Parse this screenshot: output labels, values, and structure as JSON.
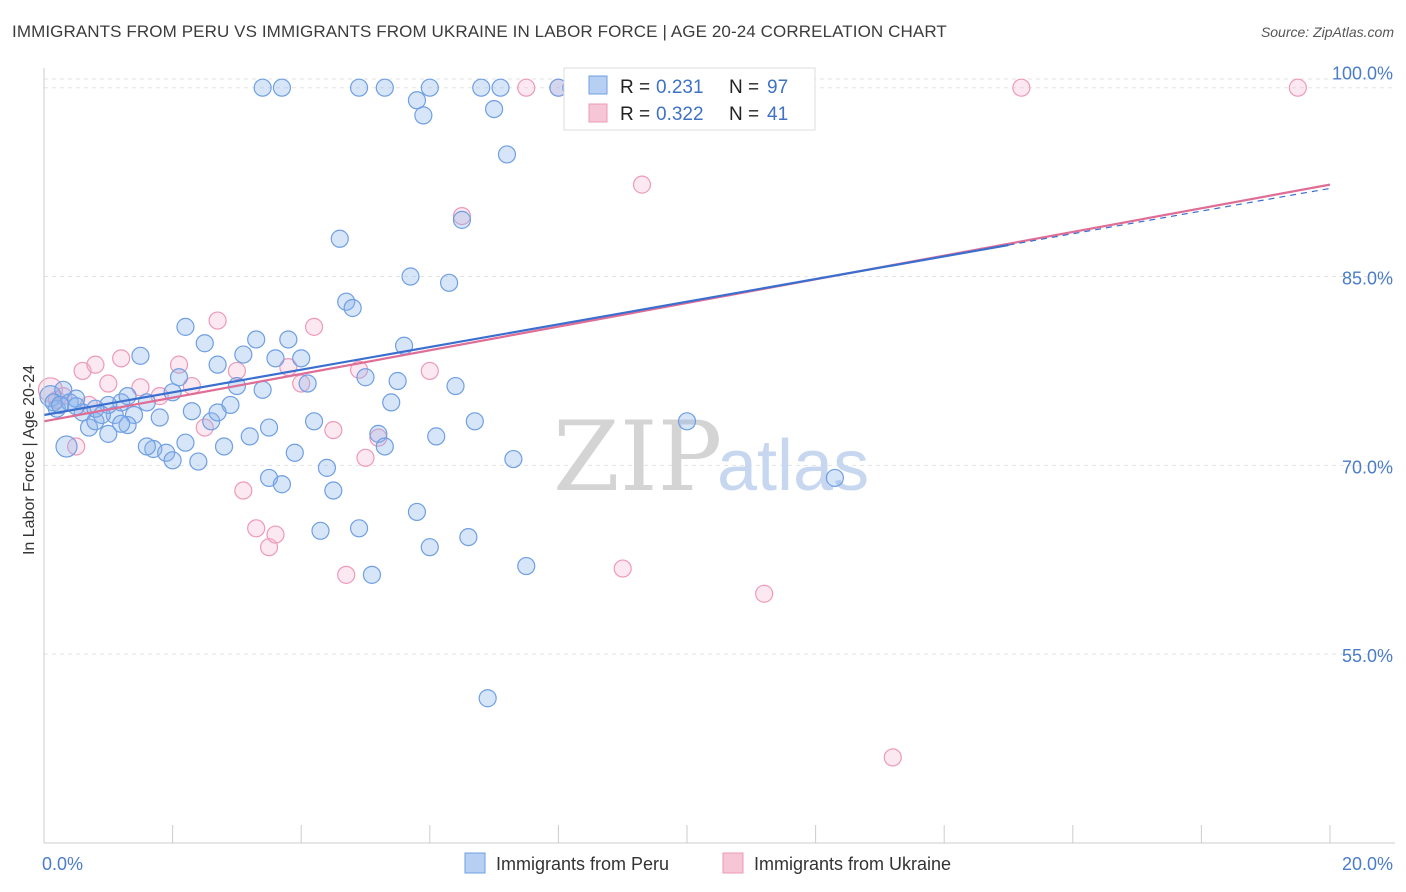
{
  "title": "IMMIGRANTS FROM PERU VS IMMIGRANTS FROM UKRAINE IN LABOR FORCE | AGE 20-24 CORRELATION CHART",
  "source": "Source: ZipAtlas.com",
  "watermark": {
    "zip": "ZIP",
    "atlas": "atlas"
  },
  "colors": {
    "peru": "#6f9fe3",
    "peru_line": "#3a6fcf",
    "ukraine": "#ee9ab8",
    "ukraine_line": "#df6d96",
    "tick_label": "#4a7cc9"
  },
  "legend_top": {
    "peru": {
      "r_label": "R =",
      "r": "0.231",
      "n_label": "N =",
      "n": "97"
    },
    "ukraine": {
      "r_label": "R =",
      "r": "0.322",
      "n_label": "N =",
      "n": "41"
    }
  },
  "chart_data": {
    "type": "scatter",
    "xlabel": "",
    "ylabel": "In Labor Force | Age 20-24",
    "xlim": [
      0,
      20
    ],
    "ylim": [
      40,
      102.2
    ],
    "x_tick_labels": [
      {
        "v": 0,
        "t": "0.0%"
      },
      {
        "v": 20,
        "t": "20.0%"
      }
    ],
    "y_tick_labels": [
      {
        "v": 55,
        "t": "55.0%"
      },
      {
        "v": 70,
        "t": "70.0%"
      },
      {
        "v": 85,
        "t": "85.0%"
      },
      {
        "v": 100,
        "t": "100.0%"
      }
    ],
    "grid": true,
    "legend_placement": "bottom-center",
    "series": [
      {
        "name": "Immigrants from Peru",
        "r": 0.231,
        "n": 97,
        "trend": {
          "x0": 0,
          "y0": 74.0,
          "x1": 15,
          "y1": 87.5,
          "dash_to_x": 20,
          "dash_to_y": 92.0
        },
        "points": [
          [
            0.1,
            75.5
          ],
          [
            0.2,
            74.5
          ],
          [
            0.3,
            76.0
          ],
          [
            0.4,
            75.0
          ],
          [
            0.5,
            75.3
          ],
          [
            0.6,
            74.2
          ],
          [
            0.7,
            73.0
          ],
          [
            0.8,
            73.5
          ],
          [
            1.0,
            72.5
          ],
          [
            1.1,
            74.0
          ],
          [
            0.35,
            71.5
          ],
          [
            1.2,
            75.0
          ],
          [
            1.3,
            75.5
          ],
          [
            1.4,
            74.0
          ],
          [
            1.5,
            78.7
          ],
          [
            1.6,
            75.0
          ],
          [
            1.7,
            71.3
          ],
          [
            1.8,
            73.8
          ],
          [
            1.9,
            71.0
          ],
          [
            2.0,
            75.8
          ],
          [
            2.1,
            77.0
          ],
          [
            2.2,
            81.0
          ],
          [
            2.3,
            74.3
          ],
          [
            2.5,
            79.7
          ],
          [
            2.6,
            73.5
          ],
          [
            2.7,
            78.0
          ],
          [
            2.8,
            71.5
          ],
          [
            2.9,
            74.8
          ],
          [
            3.0,
            76.3
          ],
          [
            3.1,
            78.8
          ],
          [
            3.2,
            72.3
          ],
          [
            3.3,
            80.0
          ],
          [
            3.4,
            76.0
          ],
          [
            3.5,
            69.0
          ],
          [
            3.6,
            78.5
          ],
          [
            3.7,
            68.5
          ],
          [
            3.8,
            80.0
          ],
          [
            3.9,
            71.0
          ],
          [
            4.0,
            78.5
          ],
          [
            4.1,
            76.5
          ],
          [
            4.2,
            73.5
          ],
          [
            4.3,
            64.8
          ],
          [
            4.4,
            69.8
          ],
          [
            4.5,
            68.0
          ],
          [
            4.6,
            88.0
          ],
          [
            4.7,
            83.0
          ],
          [
            4.8,
            82.5
          ],
          [
            4.9,
            65.0
          ],
          [
            5.0,
            77.0
          ],
          [
            5.1,
            61.3
          ],
          [
            5.2,
            72.5
          ],
          [
            5.3,
            71.5
          ],
          [
            5.4,
            75.0
          ],
          [
            5.5,
            76.7
          ],
          [
            5.6,
            79.5
          ],
          [
            5.7,
            85.0
          ],
          [
            5.8,
            66.3
          ],
          [
            6.0,
            63.5
          ],
          [
            6.1,
            72.3
          ],
          [
            6.3,
            84.5
          ],
          [
            6.4,
            76.3
          ],
          [
            6.5,
            89.5
          ],
          [
            6.6,
            64.3
          ],
          [
            6.7,
            73.5
          ],
          [
            7.0,
            98.3
          ],
          [
            7.2,
            94.7
          ],
          [
            7.3,
            70.5
          ],
          [
            7.5,
            62.0
          ],
          [
            8.0,
            100.0
          ],
          [
            8.4,
            99.5
          ],
          [
            3.4,
            100.0
          ],
          [
            3.7,
            100.0
          ],
          [
            4.9,
            100.0
          ],
          [
            5.3,
            100.0
          ],
          [
            5.8,
            99.0
          ],
          [
            5.9,
            97.8
          ],
          [
            6.0,
            100.0
          ],
          [
            6.8,
            100.0
          ],
          [
            7.1,
            100.0
          ],
          [
            8.2,
            100.0
          ],
          [
            6.9,
            51.5
          ],
          [
            10.0,
            73.5
          ],
          [
            12.3,
            69.0
          ],
          [
            2.0,
            70.4
          ],
          [
            2.4,
            70.3
          ],
          [
            1.0,
            74.8
          ],
          [
            1.3,
            73.2
          ],
          [
            0.9,
            74.0
          ],
          [
            2.7,
            74.2
          ],
          [
            3.5,
            73.0
          ],
          [
            1.6,
            71.5
          ],
          [
            0.5,
            74.7
          ],
          [
            0.15,
            75.0
          ],
          [
            0.25,
            74.8
          ],
          [
            1.2,
            73.3
          ],
          [
            2.2,
            71.8
          ],
          [
            0.8,
            74.5
          ]
        ]
      },
      {
        "name": "Immigrants from Ukraine",
        "r": 0.322,
        "n": 41,
        "trend": {
          "x0": 0,
          "y0": 73.5,
          "x1": 20,
          "y1": 92.3
        },
        "points": [
          [
            0.1,
            76.0
          ],
          [
            0.2,
            75.2
          ],
          [
            0.3,
            75.5
          ],
          [
            0.5,
            71.5
          ],
          [
            0.6,
            77.5
          ],
          [
            0.7,
            74.8
          ],
          [
            0.8,
            78.0
          ],
          [
            1.0,
            76.5
          ],
          [
            1.2,
            78.5
          ],
          [
            1.5,
            76.2
          ],
          [
            1.8,
            75.5
          ],
          [
            2.1,
            78.0
          ],
          [
            2.3,
            76.3
          ],
          [
            2.5,
            73.0
          ],
          [
            2.7,
            81.5
          ],
          [
            3.0,
            77.5
          ],
          [
            3.1,
            68.0
          ],
          [
            3.3,
            65.0
          ],
          [
            3.5,
            63.5
          ],
          [
            3.6,
            64.5
          ],
          [
            3.8,
            77.8
          ],
          [
            4.0,
            76.5
          ],
          [
            4.2,
            81.0
          ],
          [
            4.5,
            72.8
          ],
          [
            4.7,
            61.3
          ],
          [
            4.9,
            77.6
          ],
          [
            5.0,
            70.6
          ],
          [
            5.2,
            72.2
          ],
          [
            6.0,
            77.5
          ],
          [
            6.5,
            89.8
          ],
          [
            9.0,
            61.8
          ],
          [
            9.3,
            92.3
          ],
          [
            11.2,
            59.8
          ],
          [
            13.2,
            46.8
          ],
          [
            7.5,
            100.0
          ],
          [
            8.0,
            100.0
          ],
          [
            8.3,
            100.0
          ],
          [
            8.6,
            100.0
          ],
          [
            11.0,
            100.0
          ],
          [
            15.2,
            100.0
          ],
          [
            19.5,
            100.0
          ]
        ]
      }
    ]
  }
}
